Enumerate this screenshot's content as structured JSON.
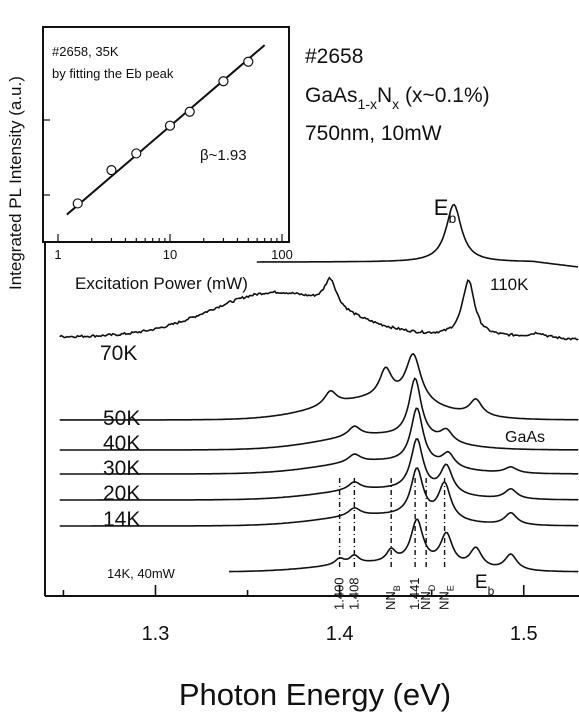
{
  "chart_data": [
    {
      "type": "line",
      "xlabel": "Photon Energy (eV)",
      "ylabel": "Integrated PL Intensity (a.u.)",
      "xlim": [
        1.24,
        1.53
      ],
      "x_ticks": [
        "1.3",
        "1.4",
        "1.5"
      ],
      "x_tick_values": [
        1.3,
        1.4,
        1.5
      ],
      "sample_info": [
        "#2658",
        "GaAs1-xNx (x~0.1%)",
        "750nm, 10mW"
      ],
      "sample_parts": {
        "id": "#2658",
        "mat_a": "GaAs",
        "mat_a_sub": "1-x",
        "mat_b": "N",
        "mat_b_sub": "x",
        "composition": " (x~0.1%)",
        "excitation": "750nm, 10mW"
      },
      "series": [
        {
          "name": "110K",
          "label": "110K",
          "x_start": 1.355,
          "baseline": 0.72,
          "peaks": [
            [
              1.462,
              1.6,
              0.005
            ]
          ],
          "noise": 0.0
        },
        {
          "name": "70K",
          "label": "70K",
          "x_start": 1.248,
          "baseline": 0.38,
          "peaks": [
            [
              1.395,
              0.7,
              0.004
            ],
            [
              1.47,
              1.4,
              0.004
            ],
            [
              1.508,
              0.1,
              0.004
            ]
          ],
          "broad": [
            1.365,
            1.1,
            0.035
          ],
          "noise": 0.06
        },
        {
          "name": "50K",
          "label": "50K",
          "x_start": 1.248,
          "baseline": 0.0,
          "peaks": [
            [
              1.395,
              0.35,
              0.004
            ],
            [
              1.425,
              0.7,
              0.004
            ],
            [
              1.44,
              1.2,
              0.005
            ],
            [
              1.474,
              0.4,
              0.004
            ]
          ],
          "broad": [
            1.42,
            0.5,
            0.03
          ],
          "noise": 0.0
        },
        {
          "name": "40K",
          "label": "40K",
          "x_start": 1.248,
          "baseline": 0.0,
          "peaks": [
            [
              1.408,
              0.25,
              0.004
            ],
            [
              1.441,
              1.5,
              0.004
            ],
            [
              1.458,
              0.3,
              0.004
            ]
          ],
          "broad": [
            1.42,
            0.35,
            0.03
          ],
          "noise": 0.0
        },
        {
          "name": "30K",
          "label": "30K",
          "x_start": 1.248,
          "baseline": 0.0,
          "peaks": [
            [
              1.408,
              0.2,
              0.004
            ],
            [
              1.442,
              1.4,
              0.004
            ],
            [
              1.459,
              0.35,
              0.004
            ],
            [
              1.493,
              0.15,
              0.004
            ]
          ],
          "broad": [
            1.42,
            0.3,
            0.03
          ],
          "noise": 0.0
        },
        {
          "name": "20K",
          "label": "20K",
          "x_start": 1.248,
          "baseline": 0.0,
          "peaks": [
            [
              1.408,
              0.2,
              0.004
            ],
            [
              1.442,
              1.3,
              0.004
            ],
            [
              1.458,
              0.7,
              0.004
            ],
            [
              1.493,
              0.25,
              0.004
            ]
          ],
          "broad": [
            1.42,
            0.25,
            0.03
          ],
          "noise": 0.0
        },
        {
          "name": "14K",
          "label": "14K",
          "x_start": 1.248,
          "baseline": 0.0,
          "peaks": [
            [
              1.408,
              0.2,
              0.004
            ],
            [
              1.442,
              1.2,
              0.004
            ],
            [
              1.457,
              0.9,
              0.004
            ],
            [
              1.493,
              0.3,
              0.004
            ]
          ],
          "broad": [
            1.42,
            0.25,
            0.03
          ],
          "noise": 0.0
        },
        {
          "name": "14K, 40mW",
          "label": "14K, 40mW",
          "x_start": 1.34,
          "baseline": 0.0,
          "peaks": [
            [
              1.4,
              0.15,
              0.003
            ],
            [
              1.408,
              0.2,
              0.003
            ],
            [
              1.428,
              0.3,
              0.003
            ],
            [
              1.442,
              1.1,
              0.004
            ],
            [
              1.458,
              0.8,
              0.004
            ],
            [
              1.474,
              0.5,
              0.004
            ],
            [
              1.493,
              0.4,
              0.004
            ]
          ],
          "broad": [
            1.42,
            0.2,
            0.03
          ],
          "noise": 0.0
        }
      ],
      "peak_labels": [
        {
          "text": "E",
          "sub": "b",
          "x": 1.462,
          "role": "top"
        },
        {
          "text": "GaAs",
          "sub": "",
          "x": 1.5,
          "role": "right"
        },
        {
          "text": "1.400",
          "sub": "",
          "x": 1.4,
          "role": "vertical"
        },
        {
          "text": "1.408",
          "sub": "",
          "x": 1.408,
          "role": "vertical"
        },
        {
          "text": "NN",
          "sub": "B",
          "x": 1.428,
          "role": "vertical"
        },
        {
          "text": "1.441",
          "sub": "",
          "x": 1.441,
          "role": "vertical"
        },
        {
          "text": "NN",
          "sub": "D",
          "x": 1.447,
          "role": "vertical"
        },
        {
          "text": "NN",
          "sub": "E",
          "x": 1.457,
          "role": "vertical"
        },
        {
          "text": "E",
          "sub": "b",
          "x": 1.474,
          "role": "bottom"
        }
      ]
    },
    {
      "type": "scatter",
      "title_lines": [
        "#2658, 35K",
        "by fitting the Eb peak"
      ],
      "xlabel": "Excitation Power (mW)",
      "ylabel": "",
      "x_scale": "log",
      "y_scale": "log",
      "xlim": [
        0.8,
        100
      ],
      "x_ticks": [
        "1",
        "10",
        "100"
      ],
      "x_tick_values": [
        1,
        10,
        100
      ],
      "points": [
        [
          1.5,
          0.55
        ],
        [
          3,
          1.15
        ],
        [
          5,
          1.45
        ],
        [
          10,
          1.95
        ],
        [
          15,
          2.2
        ],
        [
          30,
          2.75
        ],
        [
          50,
          3.1
        ]
      ],
      "fit_line": {
        "slope_label": "β~1.93",
        "from": [
          1.2,
          0.35
        ],
        "to": [
          70,
          3.4
        ]
      }
    }
  ]
}
